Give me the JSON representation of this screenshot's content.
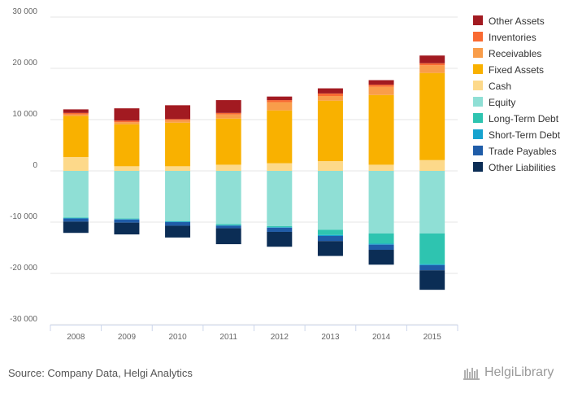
{
  "chart_data": {
    "type": "bar",
    "stacked": true,
    "categories": [
      "2008",
      "2009",
      "2010",
      "2011",
      "2012",
      "2013",
      "2014",
      "2015"
    ],
    "ylim": [
      -30000,
      30000
    ],
    "yticks": [
      30000,
      20000,
      10000,
      0,
      -10000,
      -20000,
      -30000
    ],
    "ytick_labels": [
      "30 000",
      "20 000",
      "10 000",
      "0",
      "-10 000",
      "-20 000",
      "-30 000"
    ],
    "grid": true,
    "legend_position": "right",
    "series": [
      {
        "name": "Cash",
        "color": "#fdd98a",
        "values": [
          2700,
          900,
          900,
          1200,
          1500,
          1900,
          1200,
          2100
        ]
      },
      {
        "name": "Fixed Assets",
        "color": "#f9b100",
        "values": [
          8000,
          8200,
          8500,
          9000,
          10300,
          11800,
          13600,
          17000
        ]
      },
      {
        "name": "Receivables",
        "color": "#f99d4a",
        "values": [
          300,
          400,
          500,
          800,
          1600,
          900,
          1600,
          1500
        ]
      },
      {
        "name": "Inventories",
        "color": "#f96a32",
        "values": [
          300,
          300,
          200,
          300,
          400,
          500,
          400,
          400
        ]
      },
      {
        "name": "Other Assets",
        "color": "#a21a21",
        "values": [
          700,
          2400,
          2700,
          2500,
          700,
          1000,
          900,
          1500
        ]
      },
      {
        "name": "Equity",
        "color": "#8fdfd5",
        "values": [
          -9100,
          -9300,
          -9800,
          -10400,
          -10800,
          -11500,
          -12200,
          -12200
        ]
      },
      {
        "name": "Long-Term Debt",
        "color": "#2ec4b0",
        "values": [
          -100,
          -100,
          -100,
          -200,
          -200,
          -1000,
          -2000,
          -6000
        ]
      },
      {
        "name": "Short-Term Debt",
        "color": "#17a3cf",
        "values": [
          -100,
          -100,
          -100,
          -100,
          -100,
          -200,
          -200,
          -200
        ]
      },
      {
        "name": "Trade Payables",
        "color": "#1f5ca8",
        "values": [
          -600,
          -600,
          -700,
          -500,
          -800,
          -1000,
          -1000,
          -1000
        ]
      },
      {
        "name": "Other Liabilities",
        "color": "#0b2d55",
        "values": [
          -2200,
          -2300,
          -2300,
          -3100,
          -2900,
          -2900,
          -2900,
          -3800
        ]
      }
    ],
    "legend_order": [
      "Other Assets",
      "Inventories",
      "Receivables",
      "Fixed Assets",
      "Cash",
      "Equity",
      "Long-Term Debt",
      "Short-Term Debt",
      "Trade Payables",
      "Other Liabilities"
    ]
  },
  "footer": {
    "source": "Source: Company Data, Helgi Analytics",
    "brand": "HelgiLibrary"
  }
}
